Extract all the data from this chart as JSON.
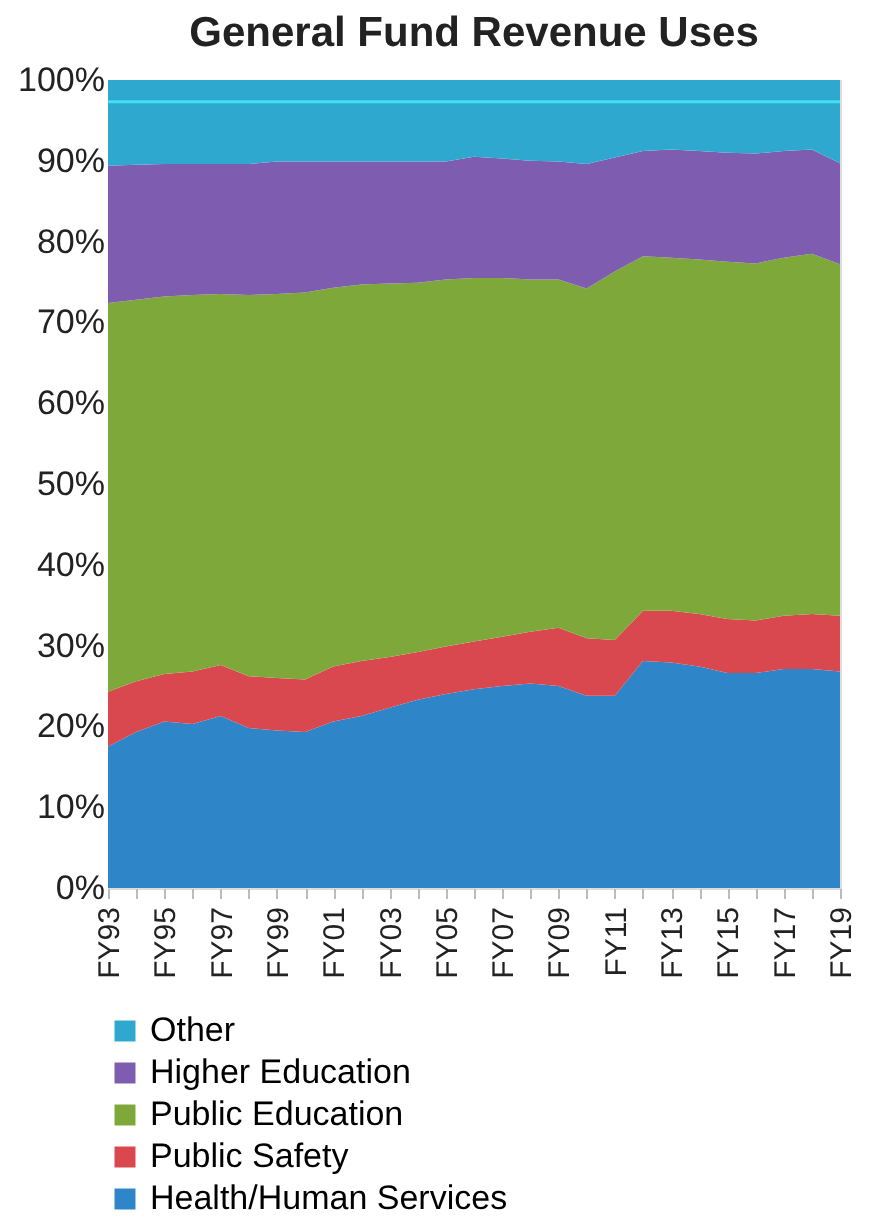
{
  "chart_data": {
    "type": "area",
    "title": "General Fund Revenue Uses",
    "stacked": true,
    "categories": [
      "FY93",
      null,
      "FY95",
      null,
      "FY97",
      null,
      "FY99",
      null,
      "FY01",
      null,
      "FY03",
      null,
      "FY05",
      null,
      "FY07",
      null,
      "FY09",
      null,
      "FY11",
      null,
      "FY13",
      null,
      "FY15",
      null,
      "FY17",
      null,
      "FY19"
    ],
    "series": [
      {
        "name": "Health/Human Services",
        "color": "#2e86c8",
        "values": [
          17.5,
          19.3,
          20.6,
          20.3,
          21.3,
          19.8,
          19.5,
          19.3,
          20.6,
          21.3,
          22.3,
          23.3,
          24.0,
          24.6,
          25.0,
          25.3,
          25.0,
          23.8,
          23.8,
          28.1,
          27.9,
          27.4,
          26.6,
          26.6,
          27.1,
          27.1,
          26.8
        ]
      },
      {
        "name": "Public Safety",
        "color": "#d9474f",
        "values": [
          6.8,
          6.3,
          5.9,
          6.5,
          6.3,
          6.4,
          6.5,
          6.5,
          6.8,
          6.8,
          6.3,
          5.9,
          5.9,
          5.9,
          6.1,
          6.4,
          7.2,
          7.1,
          6.9,
          6.2,
          6.4,
          6.5,
          6.7,
          6.5,
          6.6,
          6.8,
          6.9
        ]
      },
      {
        "name": "Public Education",
        "color": "#7fa83a",
        "values": [
          48.1,
          47.2,
          46.7,
          46.6,
          45.9,
          47.2,
          47.5,
          47.9,
          46.9,
          46.6,
          46.2,
          45.7,
          45.4,
          45.0,
          44.4,
          43.6,
          43.1,
          43.3,
          45.6,
          43.9,
          43.7,
          43.9,
          44.2,
          44.2,
          44.3,
          44.6,
          43.5
        ]
      },
      {
        "name": "Higher Education",
        "color": "#7e5cb0",
        "values": [
          17.0,
          16.7,
          16.4,
          16.2,
          16.1,
          16.2,
          16.4,
          16.2,
          15.6,
          15.2,
          15.1,
          15.0,
          14.6,
          15.0,
          14.8,
          14.7,
          14.6,
          15.4,
          14.1,
          13.0,
          13.4,
          13.4,
          13.5,
          13.6,
          13.2,
          12.9,
          12.5
        ]
      },
      {
        "name": "Other",
        "color": "#2fa8d0",
        "values": [
          10.6,
          10.5,
          10.4,
          10.4,
          10.4,
          10.4,
          10.1,
          10.1,
          10.1,
          10.1,
          10.1,
          10.1,
          10.1,
          9.5,
          9.7,
          10.0,
          10.1,
          10.4,
          9.6,
          8.8,
          8.6,
          8.8,
          9.0,
          9.1,
          8.8,
          8.6,
          10.3
        ]
      }
    ],
    "ylim": [
      0,
      100
    ],
    "yticks": [
      {
        "value": 0,
        "label": "0%"
      },
      {
        "value": 10,
        "label": "10%"
      },
      {
        "value": 20,
        "label": "20%"
      },
      {
        "value": 30,
        "label": "30%"
      },
      {
        "value": 40,
        "label": "40%"
      },
      {
        "value": 50,
        "label": "50%"
      },
      {
        "value": 60,
        "label": "60%"
      },
      {
        "value": 70,
        "label": "70%"
      },
      {
        "value": 80,
        "label": "80%"
      },
      {
        "value": 90,
        "label": "90%"
      },
      {
        "value": 100,
        "label": "100%"
      }
    ],
    "ref_lines": [
      {
        "axis": "y",
        "value": 97.3,
        "color": "#40e0f0"
      }
    ],
    "grid": false,
    "legend": "bottom"
  }
}
